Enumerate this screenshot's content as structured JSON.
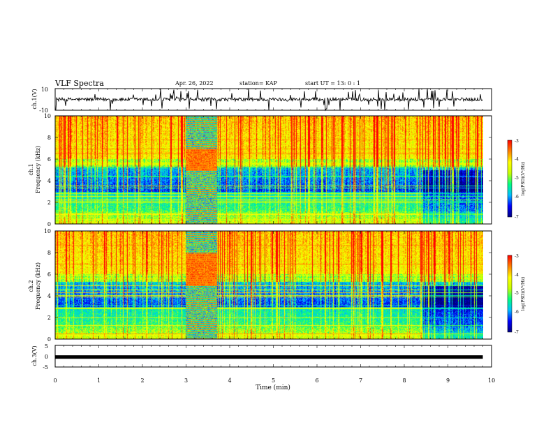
{
  "header": {
    "title": "VLF Spectra",
    "date": "Apr. 26, 2022",
    "station": "station= KAP",
    "start": "start  UT =   13: 0  : 1"
  },
  "chart_data": [
    {
      "id": "ch1-waveform",
      "type": "line",
      "ylabel": "ch.1(V)",
      "ylim": [
        -10,
        10
      ],
      "yticks": [
        "10",
        "-10"
      ],
      "xlim": [
        0,
        10
      ],
      "baseline": 0,
      "line_color": "#000000"
    },
    {
      "id": "ch1-spectrogram",
      "type": "heatmap",
      "ylabel": "ch.1",
      "ylabel2": "Frequency (kHz)",
      "ylim": [
        0,
        10
      ],
      "yticks": [
        "0",
        "2",
        "4",
        "6",
        "8",
        "10"
      ],
      "xlim": [
        0,
        10
      ],
      "data_extent_min": 9.8,
      "colorbar": {
        "label": "log(PSD)(V²/Hz)",
        "range": [
          -7,
          -3
        ],
        "ticks": [
          "-3",
          "-4",
          "-5",
          "-6",
          "-7"
        ]
      },
      "interference_band_min": [
        3.0,
        3.7
      ],
      "quiet_region_after_min": 8.4
    },
    {
      "id": "ch2-spectrogram",
      "type": "heatmap",
      "ylabel": "ch.2",
      "ylabel2": "Frequency (kHz)",
      "ylim": [
        0,
        10
      ],
      "yticks": [
        "0",
        "2",
        "4",
        "6",
        "8",
        "10"
      ],
      "xlim": [
        0,
        10
      ],
      "data_extent_min": 9.8,
      "colorbar": {
        "label": "log(PSD)(V²/Hz)",
        "range": [
          -7,
          -3
        ],
        "ticks": [
          "-3",
          "-4",
          "-5",
          "-6",
          "-7"
        ]
      },
      "interference_band_min": [
        3.0,
        3.7
      ],
      "quiet_region_after_min": 8.4
    },
    {
      "id": "ch3-waveform",
      "type": "line",
      "ylabel": "ch.3(V)",
      "ylim": [
        -5,
        5
      ],
      "yticks": [
        "5",
        "0",
        "-5"
      ],
      "xlim": [
        0,
        10
      ],
      "baseline": -0.4,
      "line_color": "#000000",
      "xlabel": "Time (min)",
      "xticks": [
        "0",
        "1",
        "2",
        "3",
        "4",
        "5",
        "6",
        "7",
        "8",
        "9",
        "10"
      ]
    }
  ],
  "colors": {
    "colormap": [
      "#00007f",
      "#0000ff",
      "#00bfff",
      "#00ff80",
      "#c8ff00",
      "#ffff00",
      "#ff8000",
      "#ff0000",
      "#ffffff"
    ]
  }
}
